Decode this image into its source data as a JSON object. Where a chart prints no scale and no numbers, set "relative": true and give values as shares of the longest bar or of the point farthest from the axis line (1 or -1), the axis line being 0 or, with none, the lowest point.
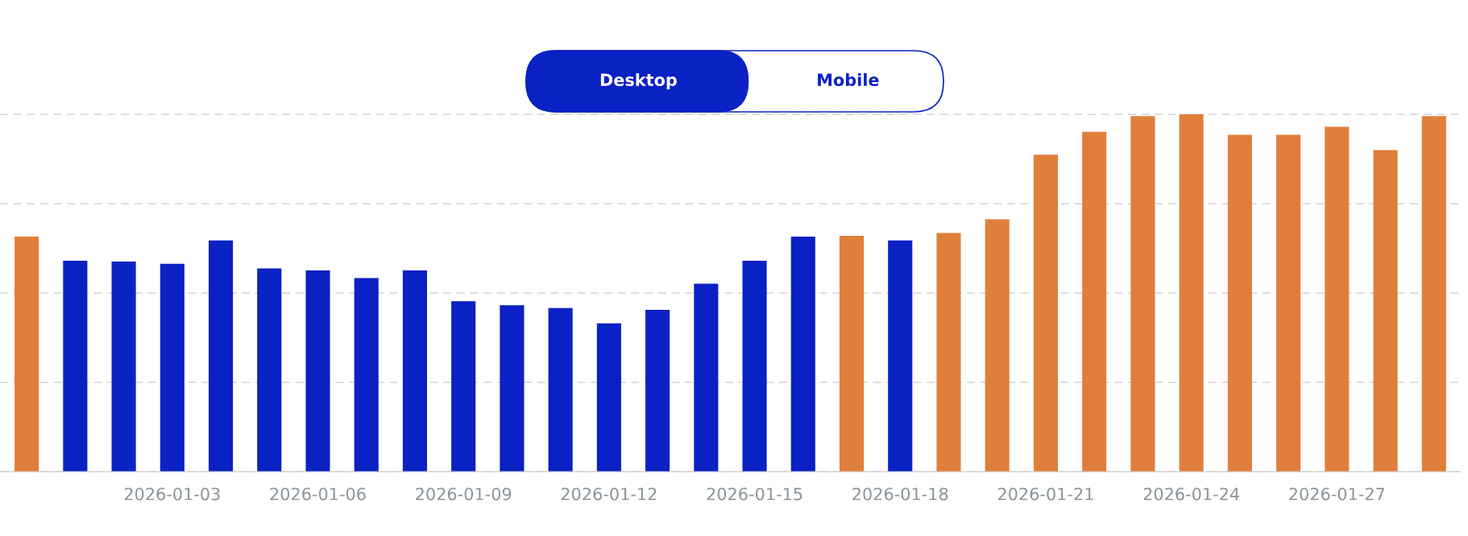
{
  "chart_data": {
    "type": "bar",
    "relative": true,
    "grid": "y",
    "categories": [
      null,
      null,
      null,
      "2026-01-03",
      null,
      null,
      "2026-01-06",
      null,
      null,
      "2026-01-09",
      null,
      null,
      "2026-01-12",
      null,
      null,
      "2026-01-15",
      null,
      null,
      "2026-01-18",
      null,
      null,
      "2026-01-21",
      null,
      null,
      "2026-01-24",
      null,
      null,
      "2026-01-27",
      null,
      null
    ],
    "values": [
      0.658,
      0.59,
      0.588,
      0.582,
      0.647,
      0.569,
      0.563,
      0.542,
      0.563,
      0.477,
      0.466,
      0.458,
      0.415,
      0.453,
      0.526,
      0.59,
      0.658,
      0.66,
      0.647,
      0.668,
      0.706,
      0.887,
      0.951,
      0.995,
      1.0,
      0.943,
      0.943,
      0.965,
      0.9,
      0.995
    ],
    "colors": [
      "#e07f3c",
      "#0a21c4",
      "#0a21c4",
      "#0a21c4",
      "#0a21c4",
      "#0a21c4",
      "#0a21c4",
      "#0a21c4",
      "#0a21c4",
      "#0a21c4",
      "#0a21c4",
      "#0a21c4",
      "#0a21c4",
      "#0a21c4",
      "#0a21c4",
      "#0a21c4",
      "#0a21c4",
      "#e07f3c",
      "#0a21c4",
      "#e07f3c",
      "#e07f3c",
      "#e07f3c",
      "#e07f3c",
      "#e07f3c",
      "#e07f3c",
      "#e07f3c",
      "#e07f3c",
      "#e07f3c",
      "#e07f3c",
      "#e07f3c"
    ],
    "annotations": [
      "Desktop",
      "Mobile"
    ]
  }
}
